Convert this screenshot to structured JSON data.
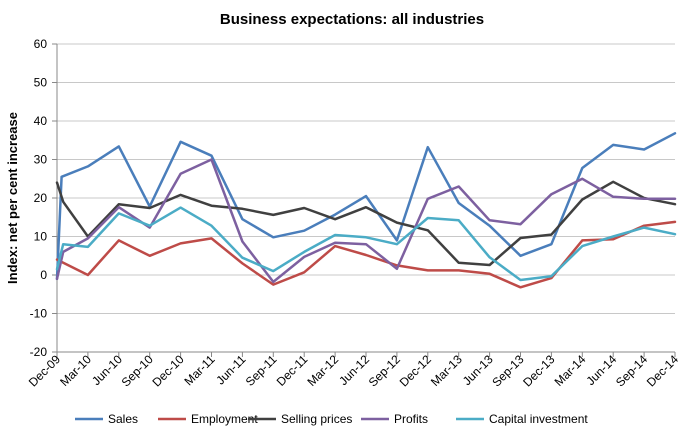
{
  "chart_data": {
    "type": "line",
    "title": "Business expectations: all industries",
    "xlabel": "",
    "ylabel": "Index: net per cent increase",
    "ylim": [
      -20,
      60
    ],
    "yticks": [
      -20,
      -10,
      0,
      10,
      20,
      30,
      40,
      50,
      60
    ],
    "grid": "horizontal",
    "legend": "bottom",
    "categories": [
      "Dec-09",
      "Mar-10",
      "Jun-10",
      "Sep-10",
      "Dec-10",
      "Mar-11",
      "Jun-11",
      "Sep-11",
      "Dec-11",
      "Mar-12",
      "Jun-12",
      "Sep-12",
      "Dec-12",
      "Mar-13",
      "Jun-13",
      "Sep-13",
      "Dec-13",
      "Mar-14",
      "Jun-14",
      "Sep-14",
      "Dec-14"
    ],
    "series": [
      {
        "name": "Sales",
        "color": "#4a7ebb",
        "values": [
          {
            "x": 0,
            "y": -1
          },
          {
            "x": 0.15,
            "y": 25.5
          },
          {
            "x": 1,
            "y": 28.2
          },
          {
            "x": 2,
            "y": 33.4
          },
          {
            "x": 3,
            "y": 17.8
          },
          {
            "x": 4,
            "y": 34.6
          },
          {
            "x": 5,
            "y": 31
          },
          {
            "x": 6,
            "y": 14.5
          },
          {
            "x": 7,
            "y": 9.8
          },
          {
            "x": 8,
            "y": 11.5
          },
          {
            "x": 9,
            "y": 15.7
          },
          {
            "x": 10,
            "y": 20.5
          },
          {
            "x": 11,
            "y": 9
          },
          {
            "x": 12,
            "y": 33.2
          },
          {
            "x": 13,
            "y": 18.7
          },
          {
            "x": 14,
            "y": 12.8
          },
          {
            "x": 15,
            "y": 5
          },
          {
            "x": 16,
            "y": 8
          },
          {
            "x": 17,
            "y": 27.8
          },
          {
            "x": 18,
            "y": 33.8
          },
          {
            "x": 19,
            "y": 32.6
          },
          {
            "x": 20,
            "y": 36.8
          }
        ]
      },
      {
        "name": "Employment",
        "color": "#be4b48",
        "values": [
          {
            "x": 0,
            "y": 4
          },
          {
            "x": 1,
            "y": 0
          },
          {
            "x": 2,
            "y": 9
          },
          {
            "x": 3,
            "y": 5
          },
          {
            "x": 4,
            "y": 8.2
          },
          {
            "x": 5,
            "y": 9.5
          },
          {
            "x": 6,
            "y": 3
          },
          {
            "x": 7,
            "y": -2.5
          },
          {
            "x": 8,
            "y": 0.7
          },
          {
            "x": 9,
            "y": 7.5
          },
          {
            "x": 10,
            "y": 5.2
          },
          {
            "x": 11,
            "y": 2.5
          },
          {
            "x": 12,
            "y": 1.2
          },
          {
            "x": 13,
            "y": 1.2
          },
          {
            "x": 14,
            "y": 0.3
          },
          {
            "x": 15,
            "y": -3.2
          },
          {
            "x": 16,
            "y": -0.8
          },
          {
            "x": 17,
            "y": 9
          },
          {
            "x": 18,
            "y": 9.3
          },
          {
            "x": 19,
            "y": 12.8
          },
          {
            "x": 20,
            "y": 13.8
          }
        ]
      },
      {
        "name": "Selling prices",
        "color": "#404040",
        "values": [
          {
            "x": 0,
            "y": 24
          },
          {
            "x": 0.2,
            "y": 19
          },
          {
            "x": 1,
            "y": 10
          },
          {
            "x": 2,
            "y": 18.4
          },
          {
            "x": 3,
            "y": 17.4
          },
          {
            "x": 4,
            "y": 20.8
          },
          {
            "x": 5,
            "y": 18
          },
          {
            "x": 6,
            "y": 17.2
          },
          {
            "x": 7,
            "y": 15.6
          },
          {
            "x": 8,
            "y": 17.4
          },
          {
            "x": 9,
            "y": 14.5
          },
          {
            "x": 10,
            "y": 17.6
          },
          {
            "x": 11,
            "y": 13.6
          },
          {
            "x": 12,
            "y": 11.6
          },
          {
            "x": 13,
            "y": 3.2
          },
          {
            "x": 14,
            "y": 2.6
          },
          {
            "x": 15,
            "y": 9.6
          },
          {
            "x": 16,
            "y": 10.5
          },
          {
            "x": 17,
            "y": 19.6
          },
          {
            "x": 18,
            "y": 24.2
          },
          {
            "x": 19,
            "y": 20
          },
          {
            "x": 20,
            "y": 18.4
          }
        ]
      },
      {
        "name": "Profits",
        "color": "#7d60a0",
        "values": [
          {
            "x": 0,
            "y": -1
          },
          {
            "x": 0.2,
            "y": 6
          },
          {
            "x": 1,
            "y": 9.5
          },
          {
            "x": 2,
            "y": 17.6
          },
          {
            "x": 3,
            "y": 12.3
          },
          {
            "x": 4,
            "y": 26.3
          },
          {
            "x": 5,
            "y": 30
          },
          {
            "x": 6,
            "y": 8.7
          },
          {
            "x": 7,
            "y": -1.8
          },
          {
            "x": 8,
            "y": 4.7
          },
          {
            "x": 9,
            "y": 8.4
          },
          {
            "x": 10,
            "y": 8
          },
          {
            "x": 11,
            "y": 1.6
          },
          {
            "x": 12,
            "y": 19.8
          },
          {
            "x": 13,
            "y": 23
          },
          {
            "x": 14,
            "y": 14.2
          },
          {
            "x": 15,
            "y": 13.2
          },
          {
            "x": 16,
            "y": 21
          },
          {
            "x": 17,
            "y": 25
          },
          {
            "x": 18,
            "y": 20.3
          },
          {
            "x": 19,
            "y": 19.8
          },
          {
            "x": 20,
            "y": 19.8
          }
        ]
      },
      {
        "name": "Capital investment",
        "color": "#4bacc6",
        "values": [
          {
            "x": 0,
            "y": 1.5
          },
          {
            "x": 0.2,
            "y": 8
          },
          {
            "x": 1,
            "y": 7.3
          },
          {
            "x": 2,
            "y": 16
          },
          {
            "x": 3,
            "y": 12.8
          },
          {
            "x": 4,
            "y": 17.5
          },
          {
            "x": 5,
            "y": 12.8
          },
          {
            "x": 6,
            "y": 4.5
          },
          {
            "x": 7,
            "y": 1
          },
          {
            "x": 8,
            "y": 6
          },
          {
            "x": 9,
            "y": 10.4
          },
          {
            "x": 10,
            "y": 9.8
          },
          {
            "x": 11,
            "y": 8
          },
          {
            "x": 12,
            "y": 14.8
          },
          {
            "x": 13,
            "y": 14.2
          },
          {
            "x": 14,
            "y": 4.6
          },
          {
            "x": 15,
            "y": -1.3
          },
          {
            "x": 16,
            "y": -0.3
          },
          {
            "x": 17,
            "y": 7.5
          },
          {
            "x": 18,
            "y": 10
          },
          {
            "x": 19,
            "y": 12.3
          },
          {
            "x": 20,
            "y": 10.6
          }
        ]
      }
    ]
  }
}
